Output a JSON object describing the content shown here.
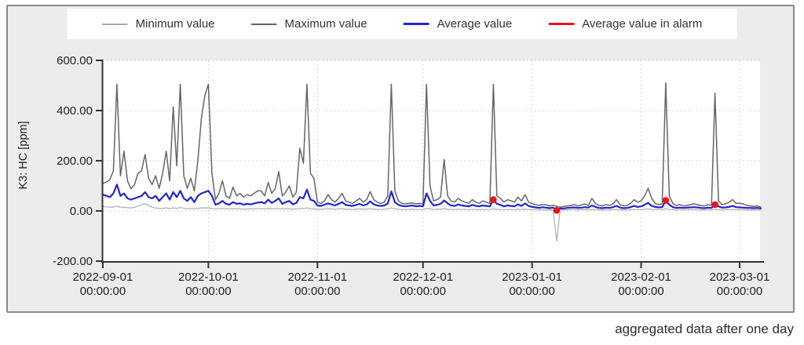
{
  "legend": {
    "items": [
      {
        "key": "minimum",
        "label": "Minimum value",
        "color": "#a8a8a8"
      },
      {
        "key": "maximum",
        "label": "Maximum value",
        "color": "#636363"
      },
      {
        "key": "average",
        "label": "Average value",
        "color": "#2525cf"
      },
      {
        "key": "alarm",
        "label": "Average value in alarm",
        "color": "#e8141e"
      }
    ]
  },
  "footer": {
    "note": "aggregated data after one day"
  },
  "chart_data": {
    "type": "line",
    "title": "",
    "xlabel": "",
    "ylabel": "K3: HC [ppm]",
    "ylim": [
      -200,
      600
    ],
    "grid": true,
    "legend_position": "top",
    "x_unit": "days since 2022-09-01 00:00:00",
    "x_range_days": [
      0,
      187
    ],
    "yticks": [
      {
        "value": 600,
        "label": "600.00"
      },
      {
        "value": 400,
        "label": "400.00"
      },
      {
        "value": 200,
        "label": "200.00"
      },
      {
        "value": 0,
        "label": "0.00"
      },
      {
        "value": -200,
        "label": "-200.00"
      }
    ],
    "xticks": [
      {
        "day": 0,
        "date": "2022-09-01",
        "time": "00:00:00"
      },
      {
        "day": 30,
        "date": "2022-10-01",
        "time": "00:00:00"
      },
      {
        "day": 61,
        "date": "2022-11-01",
        "time": "00:00:00"
      },
      {
        "day": 91,
        "date": "2022-12-01",
        "time": "00:00:00"
      },
      {
        "day": 122,
        "date": "2023-01-01",
        "time": "00:00:00"
      },
      {
        "day": 153,
        "date": "2023-02-01",
        "time": "00:00:00"
      },
      {
        "day": 181,
        "date": "2023-03-01",
        "time": "00:00:00"
      }
    ],
    "series": [
      {
        "name": "Minimum value",
        "color": "#b3b3b3",
        "width": 1.3,
        "values": [
          18,
          16,
          15,
          15,
          20,
          14,
          15,
          13,
          12,
          14,
          20,
          25,
          28,
          22,
          15,
          12,
          10,
          10,
          12,
          10,
          12,
          10,
          14,
          10,
          9,
          10,
          8,
          10,
          12,
          12,
          12,
          10,
          8,
          9,
          10,
          8,
          8,
          9,
          8,
          8,
          7,
          8,
          8,
          8,
          9,
          9,
          8,
          10,
          8,
          9,
          10,
          8,
          8,
          9,
          7,
          8,
          10,
          10,
          12,
          9,
          8,
          7,
          7,
          8,
          8,
          8,
          7,
          8,
          9,
          7,
          7,
          6,
          7,
          8,
          7,
          7,
          9,
          7,
          7,
          6,
          7,
          8,
          12,
          8,
          7,
          6,
          6,
          6,
          7,
          6,
          6,
          6,
          10,
          8,
          6,
          7,
          7,
          9,
          7,
          6,
          6,
          7,
          6,
          6,
          5,
          6,
          6,
          5,
          6,
          6,
          5,
          9,
          6,
          6,
          5,
          6,
          6,
          5,
          7,
          6,
          7,
          6,
          5,
          5,
          4,
          5,
          4,
          4,
          4,
          -120,
          4,
          4,
          4,
          5,
          5,
          4,
          5,
          5,
          4,
          6,
          5,
          4,
          4,
          5,
          4,
          5,
          6,
          4,
          4,
          4,
          5,
          6,
          5,
          6,
          7,
          8,
          6,
          5,
          5,
          5,
          9,
          6,
          5,
          4,
          5,
          4,
          5,
          5,
          5,
          5,
          4,
          4,
          5,
          4,
          7,
          5,
          4,
          5,
          5,
          6,
          5,
          5,
          5,
          4,
          4,
          4,
          4,
          4
        ]
      },
      {
        "name": "Maximum value",
        "color": "#666666",
        "width": 1.5,
        "values": [
          110,
          115,
          125,
          160,
          505,
          140,
          238,
          120,
          88,
          105,
          150,
          160,
          225,
          130,
          105,
          140,
          90,
          150,
          238,
          120,
          415,
          180,
          505,
          140,
          90,
          130,
          80,
          200,
          370,
          460,
          505,
          150,
          45,
          70,
          120,
          60,
          50,
          95,
          60,
          70,
          55,
          65,
          60,
          70,
          80,
          80,
          60,
          113,
          70,
          90,
          157,
          60,
          75,
          100,
          55,
          75,
          250,
          190,
          505,
          150,
          130,
          35,
          30,
          40,
          65,
          45,
          35,
          50,
          70,
          40,
          35,
          30,
          40,
          50,
          35,
          45,
          77,
          45,
          35,
          30,
          35,
          60,
          505,
          80,
          40,
          30,
          28,
          30,
          32,
          28,
          30,
          28,
          505,
          100,
          40,
          45,
          55,
          205,
          60,
          40,
          35,
          50,
          40,
          35,
          30,
          45,
          35,
          30,
          40,
          35,
          30,
          505,
          60,
          50,
          35,
          45,
          40,
          35,
          55,
          40,
          65,
          35,
          30,
          25,
          22,
          26,
          24,
          20,
          22,
          18,
          15,
          18,
          20,
          22,
          25,
          20,
          24,
          28,
          22,
          50,
          30,
          22,
          20,
          25,
          22,
          28,
          45,
          25,
          20,
          22,
          30,
          45,
          35,
          40,
          60,
          90,
          50,
          30,
          25,
          28,
          510,
          60,
          30,
          22,
          25,
          20,
          22,
          25,
          28,
          25,
          22,
          20,
          25,
          22,
          470,
          40,
          25,
          28,
          35,
          45,
          30,
          30,
          28,
          22,
          20,
          18,
          20,
          15
        ]
      },
      {
        "name": "Average value",
        "color": "#2525cf",
        "width": 2.2,
        "values": [
          65,
          60,
          55,
          70,
          105,
          60,
          70,
          50,
          45,
          50,
          55,
          60,
          75,
          55,
          50,
          60,
          40,
          55,
          70,
          45,
          75,
          55,
          80,
          50,
          40,
          55,
          35,
          60,
          70,
          75,
          80,
          60,
          25,
          30,
          40,
          28,
          25,
          35,
          28,
          30,
          25,
          28,
          26,
          30,
          33,
          35,
          30,
          45,
          32,
          40,
          50,
          28,
          35,
          40,
          26,
          32,
          55,
          50,
          85,
          45,
          40,
          22,
          20,
          25,
          30,
          26,
          22,
          28,
          35,
          24,
          22,
          20,
          24,
          28,
          22,
          26,
          38,
          26,
          22,
          20,
          22,
          30,
          78,
          35,
          24,
          20,
          18,
          20,
          22,
          18,
          20,
          18,
          70,
          40,
          22,
          24,
          28,
          42,
          30,
          22,
          20,
          26,
          22,
          20,
          18,
          24,
          20,
          18,
          22,
          20,
          18,
          45,
          28,
          24,
          18,
          22,
          20,
          18,
          26,
          20,
          30,
          20,
          16,
          14,
          12,
          15,
          13,
          11,
          13,
          2,
          10,
          10,
          12,
          13,
          14,
          12,
          13,
          15,
          13,
          22,
          16,
          12,
          11,
          13,
          12,
          15,
          20,
          13,
          11,
          12,
          15,
          20,
          16,
          18,
          25,
          32,
          20,
          16,
          14,
          15,
          42,
          25,
          15,
          12,
          13,
          12,
          13,
          14,
          15,
          14,
          12,
          11,
          13,
          12,
          25,
          18,
          13,
          14,
          16,
          20,
          15,
          14,
          13,
          12,
          12,
          11,
          12,
          10
        ]
      }
    ],
    "alarm_points": {
      "name": "Average value in alarm",
      "color": "#e8141e",
      "points": [
        {
          "day": 111,
          "value": 45
        },
        {
          "day": 129,
          "value": 2
        },
        {
          "day": 160,
          "value": 42
        },
        {
          "day": 174,
          "value": 25
        }
      ]
    }
  }
}
